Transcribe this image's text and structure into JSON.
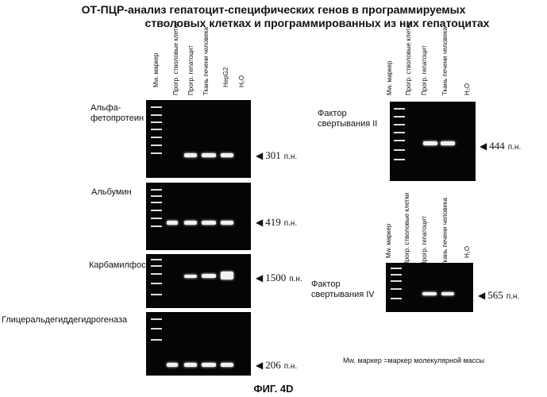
{
  "title": {
    "line1": "ОТ-ПЦР-анализ гепатоцит-специфических генов в программируемых",
    "line2": "стволовых клетках и программированных из них гепатоцитах"
  },
  "left_lanes": [
    "Mw. маркер",
    "Прогр. стволовые клетки",
    "Прогр. гепатоцит",
    "Ткань печени человека",
    "HepG2",
    "H₂O"
  ],
  "right_lanes": [
    "Mw. маркер",
    "Прогр. стволовые клетки",
    "Прогр. гепатоцит",
    "Ткань печени человека",
    "H₂O"
  ],
  "genes": {
    "afp": "Альфа-фетопротеин",
    "alb": "Альбумин",
    "cps": "Карбамилфосфатсинтетаза I",
    "gapdh": "Глицеральдегиддегидрогеназа",
    "f2": "Фактор свертывания II",
    "f4": "Фактор свертывания IV"
  },
  "sizes": {
    "afp": "301",
    "alb": "419",
    "cps": "1500",
    "gapdh": "206",
    "f2": "444",
    "f4": "565"
  },
  "unit": "п.н.",
  "legend": "Mw. маркер =маркер молекулярной массы",
  "figure_label": "ФИГ. 4D"
}
